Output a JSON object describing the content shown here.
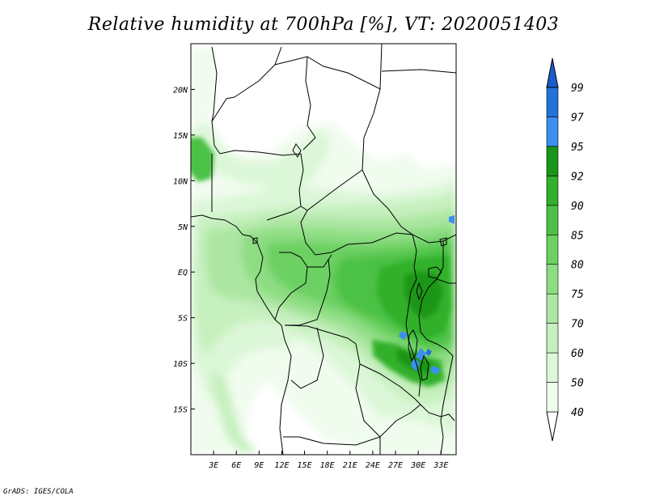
{
  "title": "Relative humidity at 700hPa [%], VT: 2020051403",
  "credit": "GrADS: IGES/COLA",
  "map": {
    "lon_range": [
      0,
      35
    ],
    "lat_range": [
      -20,
      25
    ],
    "x_ticks": [
      {
        "value": 3,
        "label": "3E"
      },
      {
        "value": 6,
        "label": "6E"
      },
      {
        "value": 9,
        "label": "9E"
      },
      {
        "value": 12,
        "label": "12E"
      },
      {
        "value": 15,
        "label": "15E"
      },
      {
        "value": 18,
        "label": "18E"
      },
      {
        "value": 21,
        "label": "21E"
      },
      {
        "value": 24,
        "label": "24E"
      },
      {
        "value": 27,
        "label": "27E"
      },
      {
        "value": 30,
        "label": "30E"
      },
      {
        "value": 33,
        "label": "33E"
      }
    ],
    "y_ticks": [
      {
        "value": 20,
        "label": "20N"
      },
      {
        "value": 15,
        "label": "15N"
      },
      {
        "value": 10,
        "label": "10N"
      },
      {
        "value": 5,
        "label": "5N"
      },
      {
        "value": 0,
        "label": "EQ"
      },
      {
        "value": -5,
        "label": "5S"
      },
      {
        "value": -10,
        "label": "10S"
      },
      {
        "value": -15,
        "label": "15S"
      }
    ]
  },
  "colorbar": {
    "levels": [
      "40",
      "50",
      "60",
      "70",
      "75",
      "80",
      "85",
      "90",
      "92",
      "95",
      "97",
      "99"
    ],
    "colors": [
      "#f0fcee",
      "#dcf7d8",
      "#c6f0be",
      "#ace6a2",
      "#8edd83",
      "#6cd062",
      "#4cc145",
      "#30b02c",
      "#1a9618",
      "#3c8ff0",
      "#2272dc",
      "#1a5ccc"
    ]
  }
}
